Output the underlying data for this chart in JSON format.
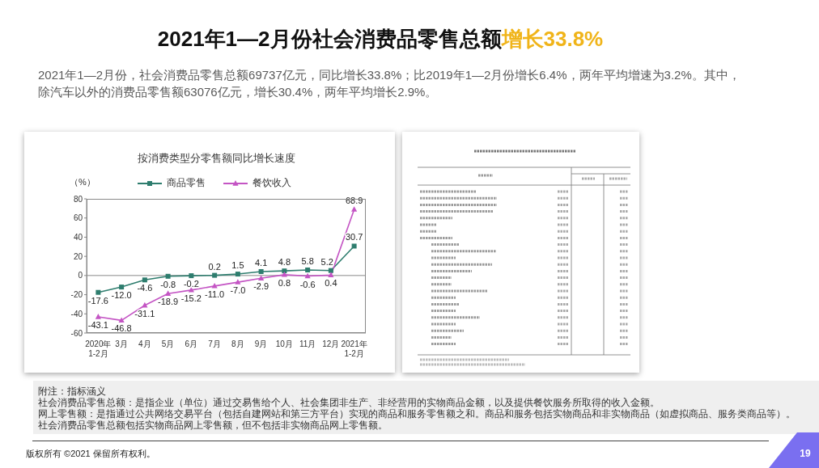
{
  "chart_data": {
    "type": "line",
    "title": "按消费类型分零售额同比增长速度",
    "ylabel": "（%）",
    "categories": [
      "2020年\n1-2月",
      "3月",
      "4月",
      "5月",
      "6月",
      "7月",
      "8月",
      "9月",
      "10月",
      "11月",
      "12月",
      "2021年\n1-2月"
    ],
    "series": [
      {
        "name": "商品零售",
        "color": "#2e7d6e",
        "marker": "square",
        "values": [
          -17.6,
          -12.0,
          -4.6,
          -0.8,
          -0.2,
          0.2,
          1.5,
          4.1,
          4.8,
          5.8,
          5.2,
          30.7
        ],
        "value_labels": [
          "-17.6",
          "-12.0",
          "-4.6",
          "-0.8",
          "-0.2",
          "0.2",
          "1.5",
          "4.1",
          "4.8",
          "5.8",
          "5.2",
          "30.7"
        ]
      },
      {
        "name": "餐饮收入",
        "color": "#c455c4",
        "marker": "triangle",
        "values": [
          -43.1,
          -46.8,
          -31.1,
          -18.9,
          -15.2,
          -11.0,
          -7.0,
          -2.9,
          0.8,
          -0.6,
          0.4,
          68.9
        ],
        "value_labels": [
          "-43.1",
          "-46.8",
          "-31.1",
          "-18.9",
          "-15.2",
          "-11.0",
          "-7.0",
          "-2.9",
          "0.8",
          "-0.6",
          "0.4",
          "68.9"
        ]
      }
    ],
    "ylim": [
      -60,
      80
    ],
    "yticks": [
      -60,
      -40,
      -20,
      0,
      20,
      40,
      60,
      80
    ],
    "legend": "top",
    "ref_lines": [
      {
        "axis": "y",
        "value": 0
      }
    ],
    "annotations": [
      "2021年1—2月份社会消费品零售总额",
      "增长33.8%",
      "2021年1—2月份，社会消费品零售总额69737亿元，同比增长33.8%；比2019年1—2月份增长6.4%，两年平均增速为3.2%。其中，除汽车以外的消费品零售额63076亿元，增长30.4%，两年平均增长2.9%。",
      "附注：指标涵义",
      "社会消费品零售总额：是指企业（单位）通过交易售给个人、社会集团非生产、非经营用的实物商品金额，以及提供餐饮服务所取得的收入金额。",
      "网上零售额：是指通过公共网络交易平台（包括自建网站和第三方平台）实现的商品和服务零售额之和。商品和服务包括实物商品和非实物商品（如虚拟商品、服务类商品等）。",
      "社会消费品零售总额包括实物商品网上零售额，但不包括非实物商品网上零售额。",
      "版权所有 ©2021 保留所有权利。",
      "19"
    ]
  }
}
